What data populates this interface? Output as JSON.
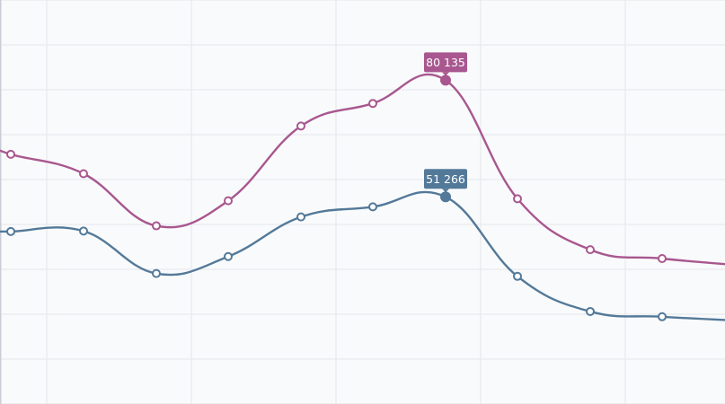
{
  "chart_data": {
    "type": "line",
    "smooth": true,
    "grid": true,
    "x": [
      0,
      1,
      2,
      3,
      4,
      5,
      6,
      7,
      8,
      9
    ],
    "ylim": [
      0,
      100000
    ],
    "series": [
      {
        "color": "#a8578f",
        "marker": "hollow-circle",
        "values": [
          61800,
          57000,
          44100,
          50300,
          68800,
          74400,
          80135,
          50800,
          38200,
          36000
        ],
        "highlight_index": 6,
        "highlight_label": "80 135"
      },
      {
        "color": "#537999",
        "marker": "hollow-circle",
        "values": [
          42700,
          42800,
          32300,
          36500,
          46300,
          48800,
          51266,
          31600,
          22900,
          21600
        ],
        "highlight_index": 6,
        "highlight_label": "51 266"
      }
    ]
  }
}
